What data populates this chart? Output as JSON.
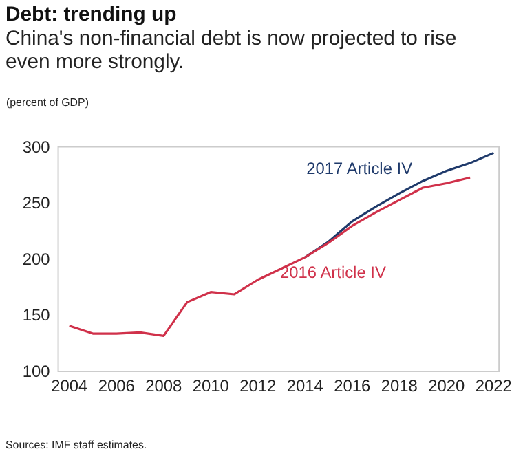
{
  "chart_data": {
    "type": "line",
    "title": "Debt: trending up",
    "subtitle": [
      "China's non-financial debt is now projected to rise",
      "even more strongly."
    ],
    "ylabel": "(percent of GDP)",
    "annotations": [
      "Sources: IMF staff estimates."
    ],
    "series": [
      {
        "name": "2017 Article IV",
        "color": "#1f3a6b",
        "x": [
          2014,
          2015,
          2016,
          2017,
          2018,
          2019,
          2020,
          2021,
          2022
        ],
        "values": [
          201,
          215,
          233,
          246,
          258,
          269,
          278,
          285,
          294
        ]
      },
      {
        "name": "2016 Article IV",
        "color": "#d0314a",
        "x": [
          2004,
          2005,
          2006,
          2007,
          2008,
          2009,
          2010,
          2011,
          2012,
          2013,
          2014,
          2015,
          2016,
          2017,
          2018,
          2019,
          2020,
          2021
        ],
        "values": [
          140,
          133,
          133,
          134,
          131,
          161,
          170,
          168,
          181,
          191,
          201,
          214,
          229,
          241,
          252,
          263,
          267,
          272
        ]
      }
    ],
    "xlim": [
      2003.5,
      2022.2
    ],
    "xticks": [
      2004,
      2006,
      2008,
      2010,
      2012,
      2014,
      2016,
      2018,
      2020,
      2022
    ],
    "ylim": [
      100,
      300
    ],
    "yticks": [
      100,
      150,
      200,
      250,
      300
    ],
    "grid": false,
    "marker": "none",
    "line_style": "solid"
  }
}
